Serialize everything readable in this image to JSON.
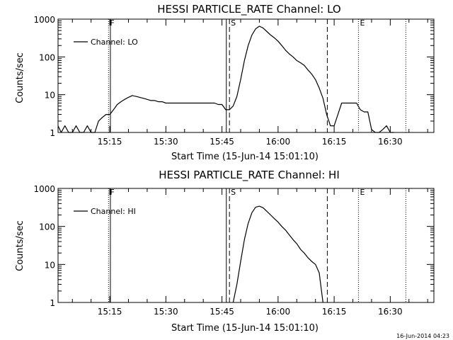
{
  "chart_data": [
    {
      "type": "line",
      "title": "HESSI PARTICLE_RATE Channel: LO",
      "xlabel": "Start Time (15-Jun-14 15:01:10)",
      "ylabel": "Counts/sec",
      "y_scale": "log",
      "ylim": [
        1,
        1000
      ],
      "xlim": [
        "15:01:10",
        "16:41:40"
      ],
      "x_ticks": [
        "15:15",
        "15:30",
        "15:45",
        "16:00",
        "16:15",
        "16:30"
      ],
      "y_ticks": [
        "1",
        "10",
        "100",
        "1000"
      ],
      "legend": {
        "placement": "top-left",
        "entries": [
          "Channel: LO"
        ]
      },
      "series": [
        {
          "name": "Channel: LO",
          "x": [
            "15:01:10",
            "15:02:00",
            "15:03:00",
            "15:04:00",
            "15:05:00",
            "15:06:00",
            "15:07:00",
            "15:08:00",
            "15:09:00",
            "15:10:00",
            "15:11:00",
            "15:12:00",
            "15:13:00",
            "15:14:00",
            "15:15:00",
            "15:16:00",
            "15:17:00",
            "15:18:00",
            "15:19:00",
            "15:20:00",
            "15:21:00",
            "15:22:00",
            "15:23:00",
            "15:24:00",
            "15:25:00",
            "15:26:00",
            "15:27:00",
            "15:28:00",
            "15:29:00",
            "15:30:00",
            "15:31:00",
            "15:32:00",
            "15:33:00",
            "15:34:00",
            "15:35:00",
            "15:36:00",
            "15:37:00",
            "15:38:00",
            "15:39:00",
            "15:40:00",
            "15:41:00",
            "15:42:00",
            "15:43:00",
            "15:44:00",
            "15:45:00",
            "15:46:00",
            "15:47:00",
            "15:48:00",
            "15:49:00",
            "15:50:00",
            "15:51:00",
            "15:52:00",
            "15:53:00",
            "15:54:00",
            "15:55:00",
            "15:56:00",
            "15:57:00",
            "15:58:00",
            "15:59:00",
            "16:00:00",
            "16:01:00",
            "16:02:00",
            "16:03:00",
            "16:04:00",
            "16:05:00",
            "16:06:00",
            "16:07:00",
            "16:08:00",
            "16:09:00",
            "16:10:00",
            "16:11:00",
            "16:12:00",
            "16:13:00",
            "16:14:00",
            "16:15:00",
            "16:16:00",
            "16:17:00",
            "16:18:00",
            "16:19:00",
            "16:20:00",
            "16:21:00",
            "16:22:00",
            "16:23:00",
            "16:24:00",
            "16:25:00",
            "16:26:00",
            "16:27:00",
            "16:28:00",
            "16:29:00",
            "16:30:00",
            "16:31:00"
          ],
          "y": [
            1.5,
            1.0,
            1.5,
            1.0,
            1.0,
            1.5,
            1.0,
            1.0,
            1.5,
            1.0,
            1.0,
            2.0,
            2.5,
            3.0,
            3.0,
            4.0,
            5.5,
            6.5,
            7.5,
            8.5,
            9.5,
            9.0,
            8.5,
            8.0,
            7.5,
            7.0,
            7.0,
            6.5,
            6.5,
            6.0,
            6.0,
            6.0,
            6.0,
            6.0,
            6.0,
            6.0,
            6.0,
            6.0,
            6.0,
            6.0,
            6.0,
            6.0,
            6.0,
            5.5,
            5.5,
            4.0,
            4.0,
            5.0,
            9.0,
            25,
            80,
            200,
            380,
            550,
            650,
            580,
            470,
            380,
            320,
            260,
            200,
            150,
            120,
            100,
            80,
            70,
            60,
            45,
            35,
            25,
            15,
            8,
            3,
            1.5,
            1.5,
            3,
            6,
            6,
            6,
            6,
            6,
            4,
            3.5,
            3.5,
            1.2,
            1.0,
            1.0,
            1.2,
            1.5,
            1.0,
            1.0
          ]
        }
      ],
      "markers": [
        {
          "label": "F",
          "time": "15:14:40",
          "style": "dotted"
        },
        {
          "label": "",
          "time": "15:15:10",
          "style": "solid"
        },
        {
          "label": "",
          "time": "15:46:10",
          "style": "solid"
        },
        {
          "label": "S",
          "time": "15:47:00",
          "style": "dashed"
        },
        {
          "label": "",
          "time": "16:13:10",
          "style": "dashed"
        },
        {
          "label": "E",
          "time": "16:21:30",
          "style": "dotted"
        },
        {
          "label": "",
          "time": "16:34:10",
          "style": "dotted"
        }
      ]
    },
    {
      "type": "line",
      "title": "HESSI PARTICLE_RATE Channel: HI",
      "xlabel": "Start Time (15-Jun-14 15:01:10)",
      "ylabel": "Counts/sec",
      "y_scale": "log",
      "ylim": [
        1,
        1000
      ],
      "xlim": [
        "15:01:10",
        "16:41:40"
      ],
      "x_ticks": [
        "15:15",
        "15:30",
        "15:45",
        "16:00",
        "16:15",
        "16:30"
      ],
      "y_ticks": [
        "1",
        "10",
        "100",
        "1000"
      ],
      "legend": {
        "placement": "top-left",
        "entries": [
          "Channel: HI"
        ]
      },
      "series": [
        {
          "name": "Channel: HI",
          "x": [
            "15:48:00",
            "15:49:00",
            "15:50:00",
            "15:51:00",
            "15:52:00",
            "15:53:00",
            "15:54:00",
            "15:55:00",
            "15:56:00",
            "15:57:00",
            "15:58:00",
            "15:59:00",
            "16:00:00",
            "16:01:00",
            "16:02:00",
            "16:03:00",
            "16:04:00",
            "16:05:00",
            "16:06:00",
            "16:07:00",
            "16:08:00",
            "16:09:00",
            "16:10:00",
            "16:11:00",
            "16:12:00"
          ],
          "y": [
            1.0,
            3,
            12,
            45,
            120,
            230,
            320,
            340,
            310,
            250,
            200,
            160,
            130,
            100,
            80,
            60,
            45,
            35,
            25,
            20,
            15,
            12,
            10,
            6,
            1.0
          ]
        }
      ],
      "markers": [
        {
          "label": "F",
          "time": "15:14:40",
          "style": "dotted"
        },
        {
          "label": "",
          "time": "15:15:10",
          "style": "solid"
        },
        {
          "label": "",
          "time": "15:46:10",
          "style": "solid"
        },
        {
          "label": "S",
          "time": "15:47:00",
          "style": "dashed"
        },
        {
          "label": "",
          "time": "16:13:10",
          "style": "dashed"
        },
        {
          "label": "E",
          "time": "16:21:30",
          "style": "dotted"
        },
        {
          "label": "",
          "time": "16:34:10",
          "style": "dotted"
        }
      ]
    }
  ],
  "footer": {
    "timestamp": "16-Jun-2014 04:23"
  }
}
